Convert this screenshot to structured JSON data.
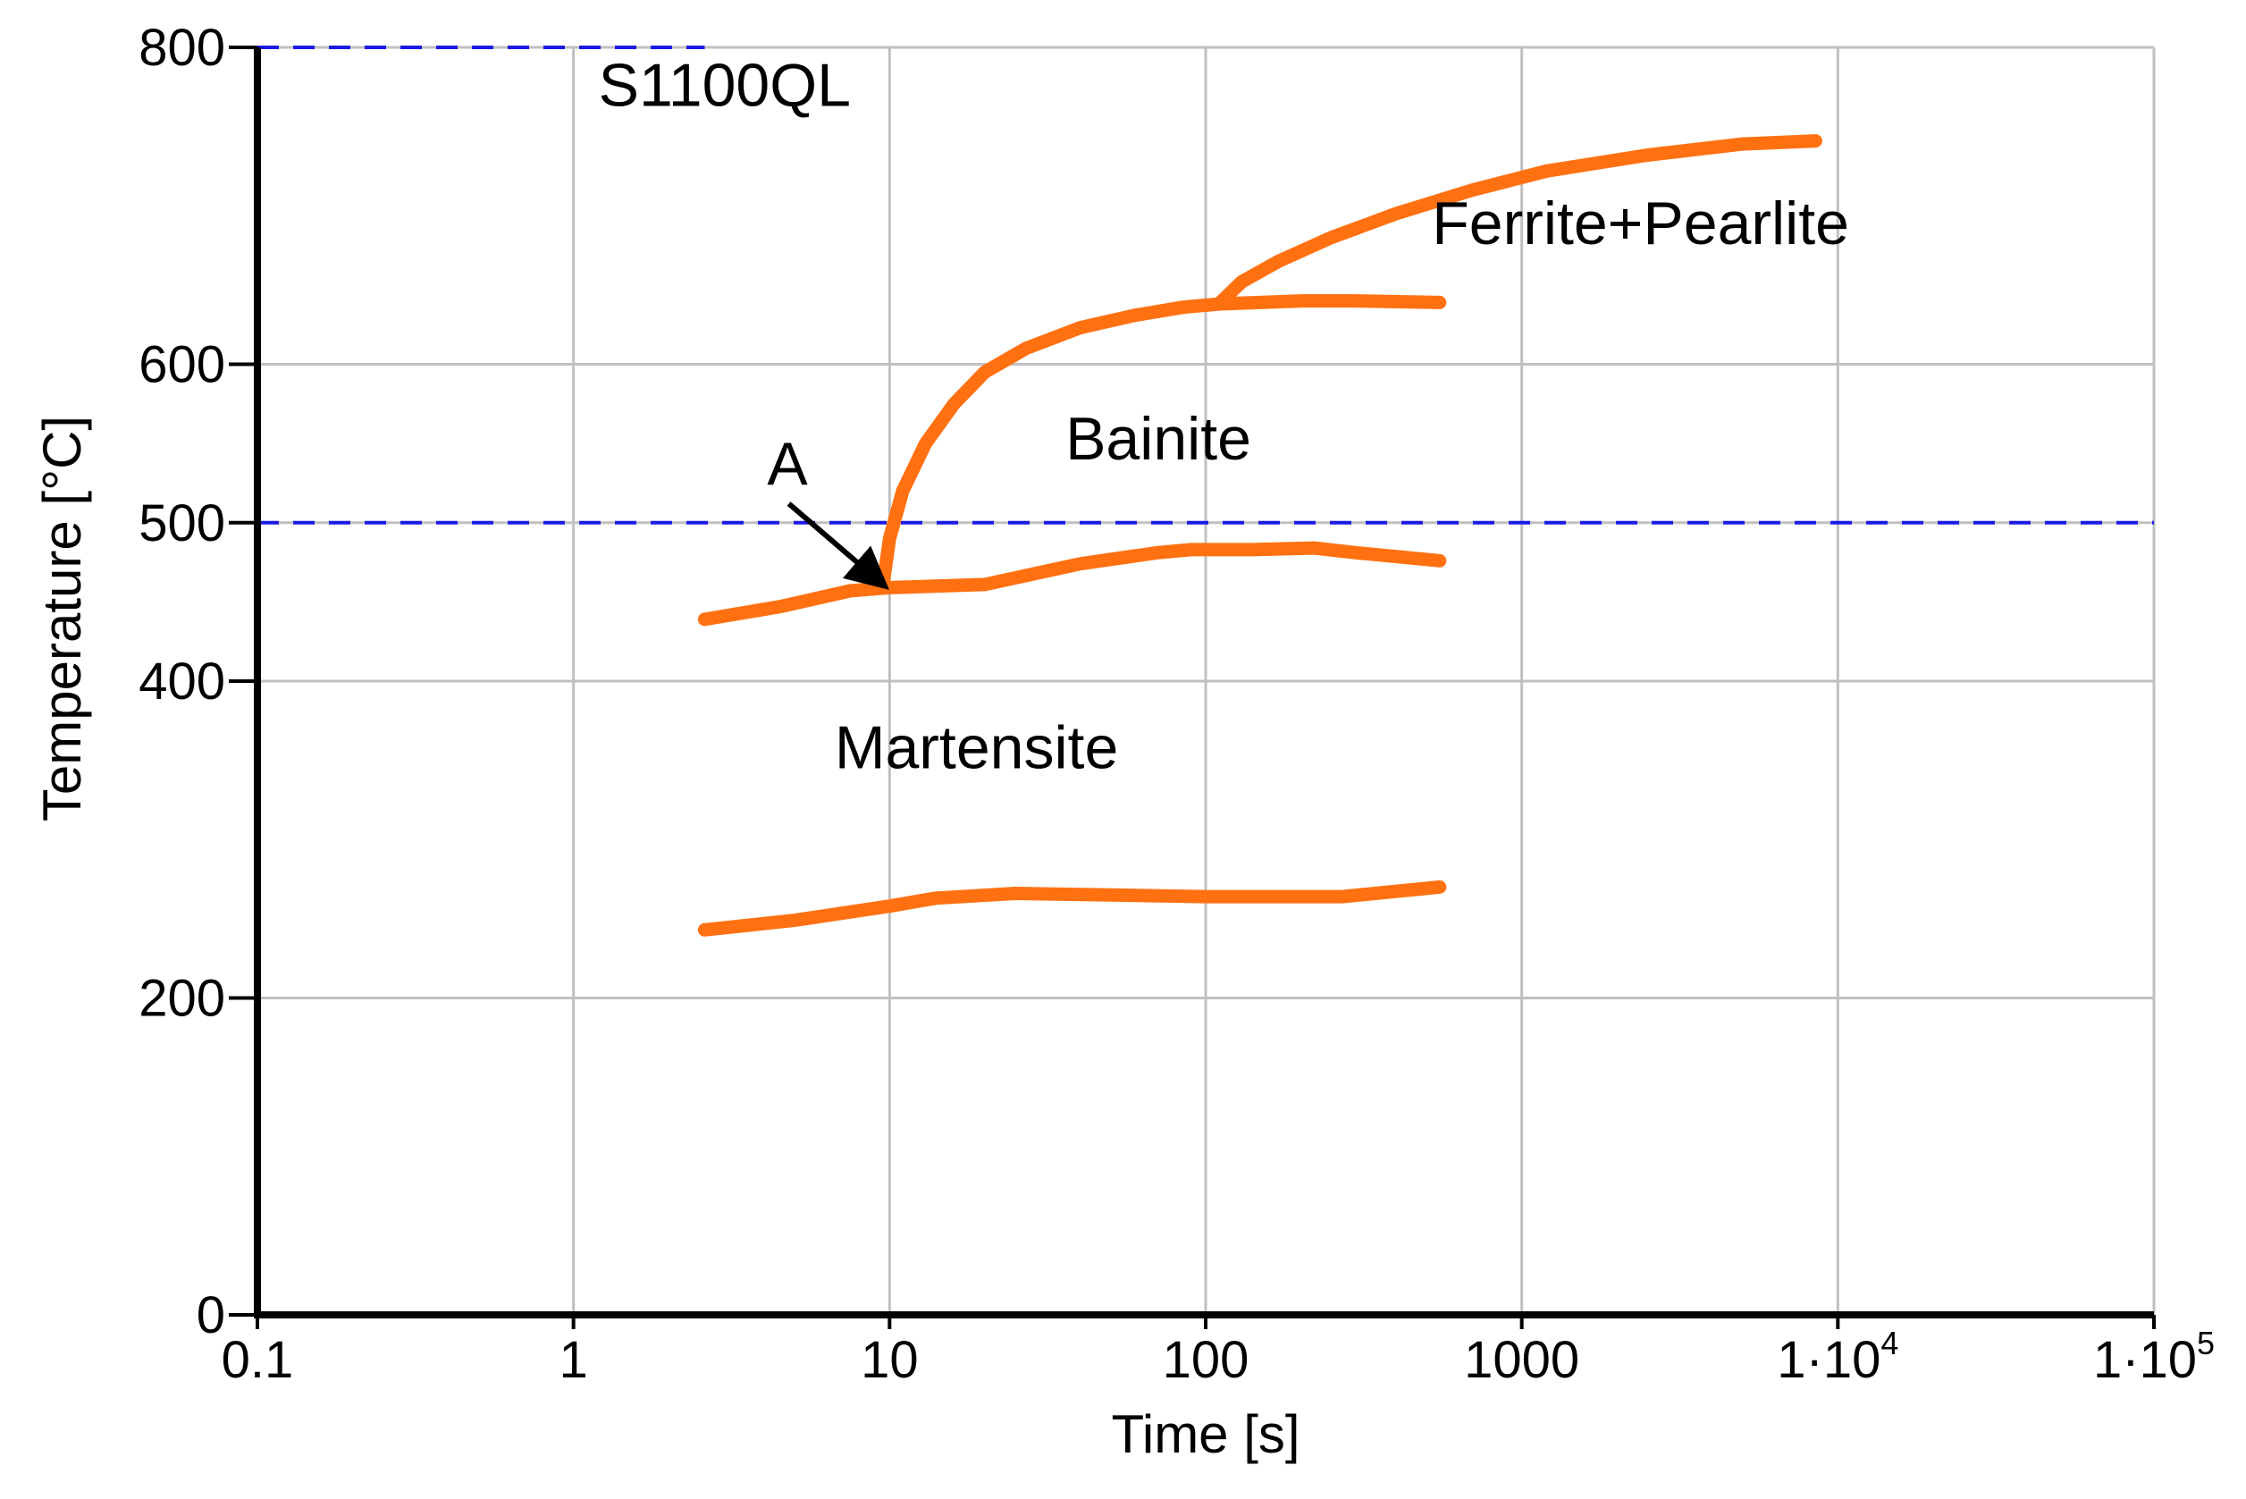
{
  "chart_data": {
    "type": "line",
    "title": "",
    "xlabel": "Time [s]",
    "ylabel": "Temperature [°C]",
    "x_scale": "log",
    "xlim": [
      0.1,
      100000
    ],
    "ylim": [
      0,
      800
    ],
    "grid": true,
    "x_ticks": [
      {
        "value": 0.1,
        "label": "0.1"
      },
      {
        "value": 1,
        "label": "1"
      },
      {
        "value": 10,
        "label": "10"
      },
      {
        "value": 100,
        "label": "100"
      },
      {
        "value": 1000,
        "label": "1000"
      },
      {
        "value": 10000,
        "label": "1·10",
        "sup": "4"
      },
      {
        "value": 100000,
        "label": "1·10",
        "sup": "5"
      }
    ],
    "y_ticks": [
      {
        "value": 0,
        "label": "0"
      },
      {
        "value": 200,
        "label": "200"
      },
      {
        "value": 400,
        "label": "400"
      },
      {
        "value": 500,
        "label": "500"
      },
      {
        "value": 600,
        "label": "600"
      },
      {
        "value": 800,
        "label": "800"
      }
    ],
    "reference_lines": [
      {
        "x": [
          0.1,
          2.6
        ],
        "y": [
          800,
          800
        ],
        "color": "#1a1ae6",
        "style": "dashed"
      },
      {
        "x": [
          0.1,
          100000
        ],
        "y": [
          500,
          500
        ],
        "color": "#1a1ae6",
        "style": "dashed"
      }
    ],
    "series": [
      {
        "color": "#ff7011",
        "x": [
          2.6,
          4.5,
          7.5,
          10,
          20,
          40,
          70,
          90,
          140,
          220,
          300,
          550
        ],
        "y": [
          439,
          447,
          457,
          459,
          461,
          474,
          481,
          483,
          483,
          484,
          481,
          476
        ]
      },
      {
        "color": "#ff7011",
        "x": [
          9.5,
          10,
          11,
          13,
          16,
          20,
          27,
          40,
          60,
          85,
          110,
          200,
          300,
          550
        ],
        "y": [
          459,
          490,
          520,
          550,
          575,
          595,
          610,
          623,
          631,
          636,
          638,
          640,
          640,
          639
        ]
      },
      {
        "color": "#ff7011",
        "x": [
          110,
          130,
          170,
          250,
          400,
          700,
          1200,
          2500,
          5000,
          8500
        ],
        "y": [
          638,
          652,
          665,
          680,
          695,
          710,
          722,
          732,
          739,
          741
        ]
      },
      {
        "color": "#ff7011",
        "x": [
          2.6,
          5,
          10,
          14,
          25,
          50,
          100,
          270,
          550
        ],
        "y": [
          243,
          249,
          258,
          263,
          266,
          265,
          264,
          264,
          270
        ]
      }
    ],
    "annotations": [
      {
        "text": "S1100QL",
        "x": 1.2,
        "y": 763
      },
      {
        "text": "Ferrite+Pearlite",
        "x": 520,
        "y": 676
      },
      {
        "text": "Bainite",
        "x": 36,
        "y": 540
      },
      {
        "text": "Martensite",
        "x": 6.7,
        "y": 345
      },
      {
        "text": "A",
        "x": 4.1,
        "y": 524
      }
    ],
    "arrow": {
      "from": [
        4.8,
        512
      ],
      "to": [
        9.4,
        462
      ],
      "color": "#000000"
    }
  }
}
